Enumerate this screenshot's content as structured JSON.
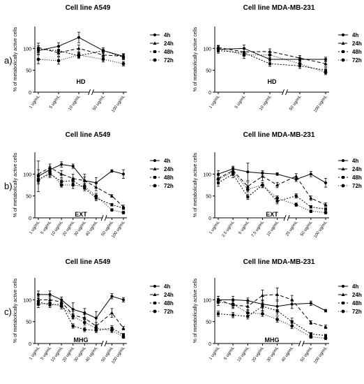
{
  "row_labels": [
    "a)",
    "b)",
    "c)"
  ],
  "chart_data": [
    {
      "type": "line",
      "row": 0,
      "col": 0,
      "title": "Cell line A549",
      "ylabel": "% of metabolically active cells",
      "xlabel": "HD",
      "categories": [
        "1 ug/mL",
        "5 ug/mL",
        "10 ug/mL",
        "50 ug/mL",
        "100 ug/mL"
      ],
      "axis_break_before": 3,
      "ylim": [
        0,
        150
      ],
      "yticks": [
        0,
        50,
        100
      ],
      "series": [
        {
          "name": "4h",
          "values": [
            95,
            105,
            125,
            95,
            82
          ],
          "errors": [
            8,
            8,
            12,
            6,
            6
          ]
        },
        {
          "name": "24h",
          "values": [
            102,
            90,
            100,
            85,
            82
          ],
          "errors": [
            10,
            8,
            8,
            6,
            5
          ]
        },
        {
          "name": "48h",
          "values": [
            98,
            95,
            83,
            95,
            80
          ],
          "errors": [
            8,
            8,
            6,
            6,
            6
          ]
        },
        {
          "name": "72h",
          "values": [
            75,
            72,
            85,
            75,
            65
          ],
          "errors": [
            10,
            8,
            6,
            6,
            5
          ]
        }
      ]
    },
    {
      "type": "line",
      "row": 0,
      "col": 1,
      "title": "Cell line MDA-MB-231",
      "ylabel": "% of metabolically active cells",
      "xlabel": "HD",
      "categories": [
        "1 ug/mL",
        "5 ug/mL",
        "10 ug/mL",
        "50 ug/mL",
        "100 ug/mL"
      ],
      "axis_break_before": 3,
      "ylim": [
        0,
        150
      ],
      "yticks": [
        0,
        50,
        100
      ],
      "series": [
        {
          "name": "4h",
          "values": [
            98,
            100,
            75,
            75,
            75
          ],
          "errors": [
            6,
            8,
            10,
            5,
            5
          ]
        },
        {
          "name": "24h",
          "values": [
            102,
            92,
            93,
            78,
            65
          ],
          "errors": [
            5,
            8,
            6,
            6,
            6
          ]
        },
        {
          "name": "48h",
          "values": [
            95,
            90,
            65,
            60,
            50
          ],
          "errors": [
            6,
            8,
            6,
            6,
            6
          ]
        },
        {
          "name": "72h",
          "values": [
            100,
            85,
            85,
            65,
            45
          ],
          "errors": [
            6,
            8,
            6,
            6,
            5
          ]
        }
      ]
    },
    {
      "type": "line",
      "row": 1,
      "col": 0,
      "title": "Cell line A549",
      "ylabel": "% of metabolically active cells",
      "xlabel": "EXT",
      "categories": [
        "1 ug/mL",
        "5 ug/mL",
        "10 ug/mL",
        "20 ug/mL",
        "30 ug/mL",
        "40 ug/mL",
        "50 ug/mL",
        "100 ug/mL"
      ],
      "axis_break_before": 6,
      "ylim": [
        0,
        150
      ],
      "yticks": [
        0,
        50,
        100
      ],
      "series": [
        {
          "name": "4h",
          "values": [
            95,
            110,
            122,
            118,
            85,
            80,
            107,
            100
          ],
          "errors": [
            35,
            8,
            6,
            5,
            15,
            12,
            3,
            10
          ]
        },
        {
          "name": "24h",
          "values": [
            100,
            115,
            100,
            90,
            85,
            70,
            50,
            25
          ],
          "errors": [
            10,
            8,
            8,
            10,
            8,
            8,
            3,
            4
          ]
        },
        {
          "name": "48h",
          "values": [
            88,
            100,
            83,
            85,
            68,
            45,
            30,
            22
          ],
          "errors": [
            8,
            8,
            6,
            6,
            6,
            6,
            3,
            3
          ]
        },
        {
          "name": "72h",
          "values": [
            85,
            105,
            75,
            75,
            72,
            50,
            18,
            12
          ],
          "errors": [
            8,
            10,
            5,
            8,
            6,
            6,
            3,
            3
          ]
        }
      ]
    },
    {
      "type": "line",
      "row": 1,
      "col": 1,
      "title": "Cell line MDA-MB-231",
      "ylabel": "% of metabolically active cells",
      "xlabel": "EXT",
      "categories": [
        "1 ug/mL",
        "2.5 ug/mL",
        "5 ug/mL",
        "7.5 ug/mL",
        "10 ug/mL",
        "25 ug/mL",
        "50 ug/mL",
        "100 ug/mL"
      ],
      "axis_break_before": 5,
      "ylim": [
        0,
        150
      ],
      "yticks": [
        0,
        50,
        100
      ],
      "series": [
        {
          "name": "4h",
          "values": [
            100,
            112,
            105,
            102,
            100,
            88,
            100,
            80
          ],
          "errors": [
            8,
            6,
            20,
            6,
            3,
            5,
            6,
            10
          ]
        },
        {
          "name": "24h",
          "values": [
            90,
            108,
            72,
            95,
            75,
            95,
            45,
            30
          ],
          "errors": [
            8,
            8,
            10,
            10,
            6,
            6,
            5,
            4
          ]
        },
        {
          "name": "48h",
          "values": [
            80,
            100,
            48,
            75,
            38,
            50,
            25,
            20
          ],
          "errors": [
            8,
            8,
            6,
            6,
            6,
            5,
            3,
            3
          ]
        },
        {
          "name": "72h",
          "values": [
            88,
            105,
            65,
            75,
            45,
            30,
            15,
            12
          ],
          "errors": [
            8,
            8,
            6,
            6,
            5,
            4,
            3,
            3
          ]
        }
      ]
    },
    {
      "type": "line",
      "row": 2,
      "col": 0,
      "title": "Cell line A549",
      "ylabel": "% of metabolically active cells",
      "xlabel": "MHG",
      "categories": [
        "1 ug/mL",
        "5 ug/mL",
        "10 ug/mL",
        "20 ug/mL",
        "30 ug/mL",
        "40 ug/mL",
        "50 ug/mL",
        "100 ug/mL"
      ],
      "axis_break_before": 6,
      "ylim": [
        0,
        150
      ],
      "yticks": [
        0,
        50,
        100
      ],
      "series": [
        {
          "name": "4h",
          "values": [
            112,
            112,
            100,
            78,
            70,
            58,
            108,
            100
          ],
          "errors": [
            8,
            8,
            6,
            15,
            10,
            15,
            6,
            5
          ]
        },
        {
          "name": "24h",
          "values": [
            100,
            100,
            95,
            65,
            58,
            40,
            70,
            35
          ],
          "errors": [
            8,
            8,
            6,
            8,
            8,
            8,
            10,
            4
          ]
        },
        {
          "name": "48h",
          "values": [
            95,
            88,
            90,
            40,
            32,
            30,
            35,
            20
          ],
          "errors": [
            8,
            6,
            6,
            5,
            5,
            5,
            6,
            3
          ]
        },
        {
          "name": "72h",
          "values": [
            90,
            92,
            85,
            62,
            48,
            35,
            30,
            15
          ],
          "errors": [
            8,
            6,
            6,
            6,
            6,
            6,
            5,
            3
          ]
        }
      ]
    },
    {
      "type": "line",
      "row": 2,
      "col": 1,
      "title": "Cell line MDA-MB-231",
      "ylabel": "% of metabolically active cells",
      "xlabel": "MHG",
      "categories": [
        "1 ug/mL",
        "5 ug/mL",
        "10 ug/mL",
        "20 ug/mL",
        "30 ug/mL",
        "40 ug/mL",
        "50 ug/mL",
        "100 ug/mL"
      ],
      "axis_break_before": 6,
      "ylim": [
        0,
        150
      ],
      "yticks": [
        0,
        50,
        100
      ],
      "series": [
        {
          "name": "4h",
          "values": [
            100,
            100,
            98,
            90,
            85,
            90,
            92,
            75
          ],
          "errors": [
            8,
            8,
            6,
            10,
            15,
            10,
            5,
            3
          ]
        },
        {
          "name": "24h",
          "values": [
            100,
            88,
            85,
            110,
            112,
            100,
            48,
            38
          ],
          "errors": [
            8,
            8,
            8,
            12,
            15,
            10,
            4,
            4
          ]
        },
        {
          "name": "48h",
          "values": [
            68,
            65,
            62,
            85,
            75,
            50,
            22,
            18
          ],
          "errors": [
            6,
            6,
            6,
            10,
            10,
            8,
            3,
            3
          ]
        },
        {
          "name": "72h",
          "values": [
            95,
            90,
            70,
            68,
            55,
            40,
            15,
            12
          ],
          "errors": [
            8,
            8,
            6,
            6,
            6,
            6,
            3,
            3
          ]
        }
      ]
    }
  ]
}
